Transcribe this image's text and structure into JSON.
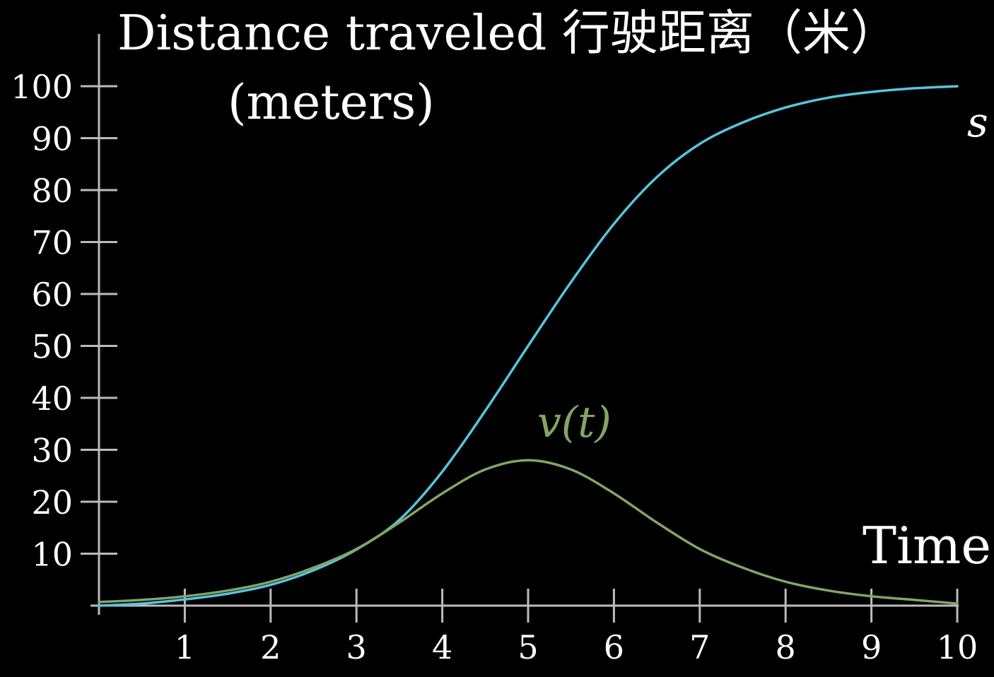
{
  "chart_data": {
    "type": "line",
    "title_lines": [
      "Distance traveled 行驶距离（米）",
      "(meters)"
    ],
    "xlabel": "Time",
    "ylabel": "",
    "xlim": [
      0,
      10
    ],
    "ylim": [
      0,
      100
    ],
    "x_ticks": [
      1,
      2,
      3,
      4,
      5,
      6,
      7,
      8,
      9,
      10
    ],
    "y_ticks": [
      10,
      20,
      30,
      40,
      50,
      60,
      70,
      80,
      90,
      100
    ],
    "grid": false,
    "legend": "none",
    "series": [
      {
        "name": "s",
        "color": "#58c4dd",
        "x": [
          0,
          0.5,
          1,
          1.5,
          2,
          2.5,
          3,
          3.5,
          4,
          4.5,
          5,
          5.5,
          6,
          6.5,
          7,
          7.5,
          8,
          8.5,
          9,
          9.5,
          10
        ],
        "y": [
          0,
          0.4,
          1.2,
          2.3,
          4.0,
          6.8,
          10.8,
          16.5,
          25.8,
          37.5,
          50.0,
          62.3,
          73.5,
          82.5,
          88.9,
          93.0,
          95.9,
          97.8,
          98.9,
          99.6,
          100
        ]
      },
      {
        "name": "v(t)",
        "color": "#83a565",
        "x": [
          0,
          0.5,
          1,
          1.5,
          2,
          2.5,
          3,
          3.5,
          4,
          4.5,
          5,
          5.5,
          6,
          6.5,
          7,
          7.5,
          8,
          8.5,
          9,
          9.5,
          10
        ],
        "y": [
          0.7,
          1.1,
          1.8,
          2.9,
          4.6,
          7.3,
          10.9,
          16.0,
          21.6,
          26.2,
          28.0,
          26.2,
          21.6,
          16.0,
          10.9,
          7.3,
          4.6,
          2.9,
          1.8,
          1.1,
          0.4
        ]
      }
    ]
  }
}
